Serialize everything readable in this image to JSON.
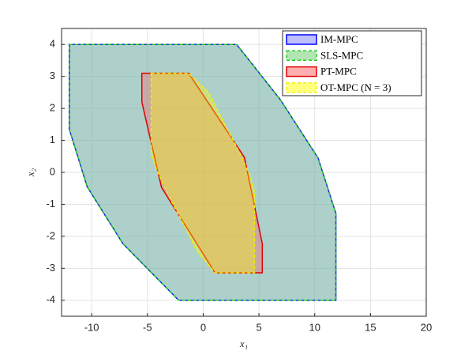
{
  "chart_data": {
    "type": "polygon",
    "xlabel": "x₁",
    "ylabel": "x₂",
    "xlim": [
      -12.7,
      20
    ],
    "ylim": [
      -4.5,
      4.5
    ],
    "xticks": [
      -10,
      -5,
      0,
      5,
      10,
      15,
      20
    ],
    "yticks": [
      -4,
      -3,
      -2,
      -1,
      0,
      1,
      2,
      3,
      4
    ],
    "grid": true,
    "legend": "northeast",
    "series": [
      {
        "name": "IM-MPC",
        "color": "#0000ff",
        "fill": "#8080ff",
        "linestyle": "solid",
        "x": [
          -12,
          3,
          6.9,
          10.3,
          11.9,
          11.9,
          -2.2,
          -7.2,
          -10.4,
          -12
        ],
        "y": [
          4,
          4,
          2.28,
          0.45,
          -1.29,
          -4,
          -4,
          -2.23,
          -0.45,
          1.34
        ]
      },
      {
        "name": "SLS-MPC",
        "color": "#22cc22",
        "fill": "#66cc66",
        "linestyle": "dashed",
        "x": [
          -12,
          3,
          6.9,
          10.3,
          11.9,
          11.9,
          -2.2,
          -7.2,
          -10.4,
          -12
        ],
        "y": [
          4,
          4,
          2.28,
          0.45,
          -1.29,
          -4,
          -4,
          -2.23,
          -0.45,
          1.34
        ]
      },
      {
        "name": "PT-MPC",
        "color": "#e00000",
        "fill": "#ff6060",
        "linestyle": "solid",
        "x": [
          -5.5,
          -1.3,
          3.7,
          5.3,
          5.3,
          1.06,
          -3.74,
          -5.5
        ],
        "y": [
          3.1,
          3.1,
          0.47,
          -2.23,
          -3.14,
          -3.14,
          -0.47,
          2.2
        ]
      },
      {
        "name": "OT-MPC (N = 3)",
        "color": "#f0f000",
        "fill": "#ffff00",
        "linestyle": "dashed",
        "x": [
          -4.66,
          -1.3,
          0.5,
          1.8,
          3,
          4.2,
          4.6,
          4.6,
          1.06,
          -0.5,
          -1.8,
          -3,
          -4.2,
          -4.66
        ],
        "y": [
          3.1,
          3.1,
          2.5,
          1.6,
          0.8,
          -0.1,
          -0.6,
          -3.14,
          -3.14,
          -2.5,
          -1.6,
          -0.8,
          0.1,
          0.6
        ]
      }
    ]
  }
}
